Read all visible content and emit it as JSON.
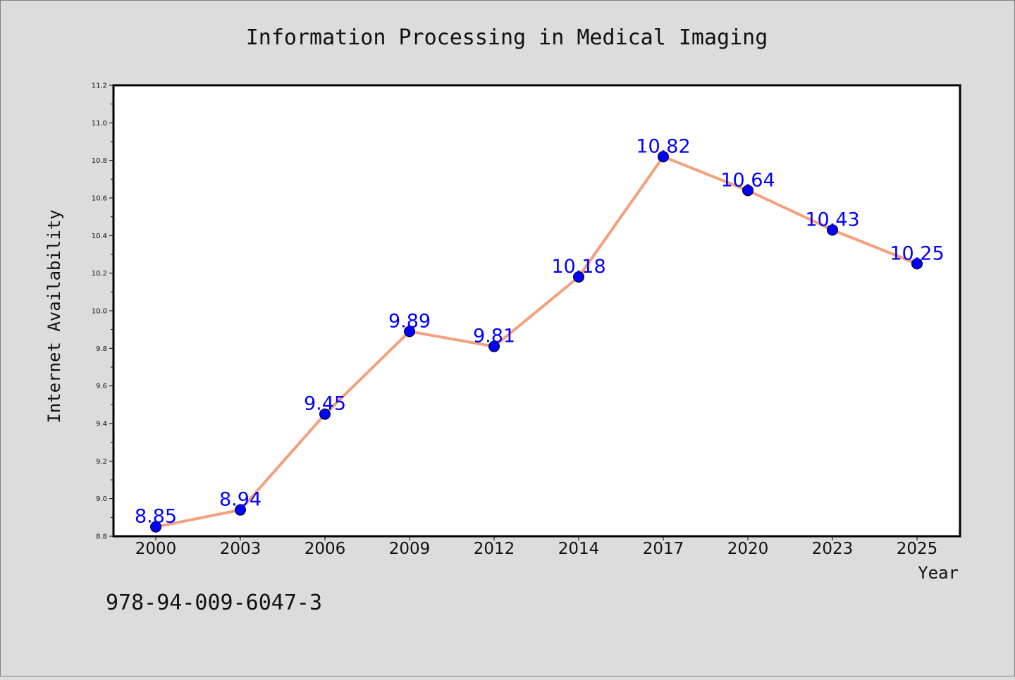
{
  "chart_data": {
    "type": "line",
    "title": "Information Processing in Medical Imaging",
    "xlabel": "Year",
    "ylabel": "Internet Availability",
    "categories": [
      "2000",
      "2003",
      "2006",
      "2009",
      "2012",
      "2014",
      "2017",
      "2020",
      "2023",
      "2025"
    ],
    "series": [
      {
        "values": [
          8.85,
          8.94,
          9.45,
          9.89,
          9.81,
          10.18,
          10.82,
          10.64,
          10.43,
          10.25
        ],
        "line_color": "#f4a07c",
        "marker_color": "#0000ff"
      }
    ],
    "ylim": [
      8.8,
      11.2
    ],
    "yticks": [
      "8.8",
      "9.0",
      "9.2",
      "9.4",
      "9.6",
      "9.8",
      "10.0",
      "10.2",
      "10.4",
      "10.6",
      "10.8",
      "11.0",
      "11.2"
    ],
    "grid": false,
    "data_labels": true
  },
  "footer_text": "978-94-009-6047-3"
}
